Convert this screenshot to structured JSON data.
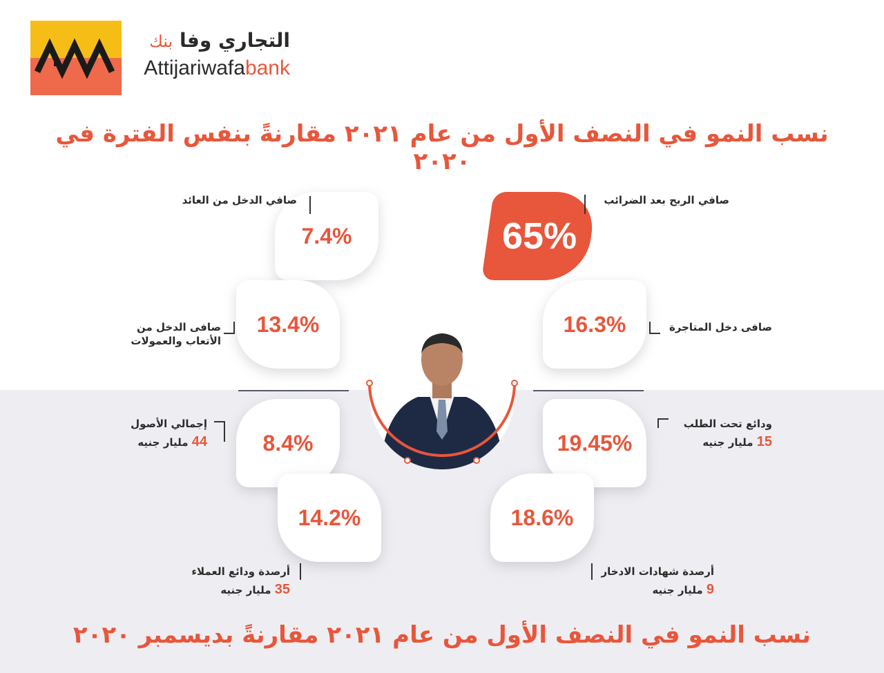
{
  "logo": {
    "arabic_name": "التجاري وفا",
    "arabic_bank": "بنك",
    "english_name": "Attijariwafa",
    "english_bank": "bank"
  },
  "heading_top": "نسب النمو في النصف الأول من عام ٢٠٢١ مقارنةً بنفس الفترة في ٢٠٢٠",
  "heading_bottom": "نسب النمو في النصف الأول من عام ٢٠٢١ مقارنةً بديسمبر ٢٠٢٠",
  "metrics": {
    "net_profit": {
      "label": "صافي الربح بعد الضرائب",
      "value": "65%"
    },
    "net_trading_income": {
      "label": "صافى دخل المتاجرة",
      "value": "16.3%"
    },
    "demand_deposits": {
      "label": "ودائع تحت الطلب",
      "amount": "15",
      "unit": "مليار جنيه",
      "value": "19.45%"
    },
    "savings_certificates": {
      "label": "أرصدة شهادات الادخار",
      "amount": "9",
      "unit": "مليار جنيه",
      "value": "18.6%"
    },
    "net_yield_income": {
      "label": "صافي الدخل من العائد",
      "value": "7.4%"
    },
    "net_fees_income": {
      "label_line1": "صافى الدخل من",
      "label_line2": "الأتعاب والعمولات",
      "value": "13.4%"
    },
    "total_assets": {
      "label": "إجمالي الأصول",
      "amount": "44",
      "unit": "مليار جنيه",
      "value": "8.4%"
    },
    "customer_deposits": {
      "label": "أرصدة ودائع العملاء",
      "amount": "35",
      "unit": "مليار جنيه",
      "value": "14.2%"
    }
  },
  "colors": {
    "accent": "#e8563b",
    "logo_yellow": "#f6bd16",
    "suit": "#1e2a44"
  }
}
